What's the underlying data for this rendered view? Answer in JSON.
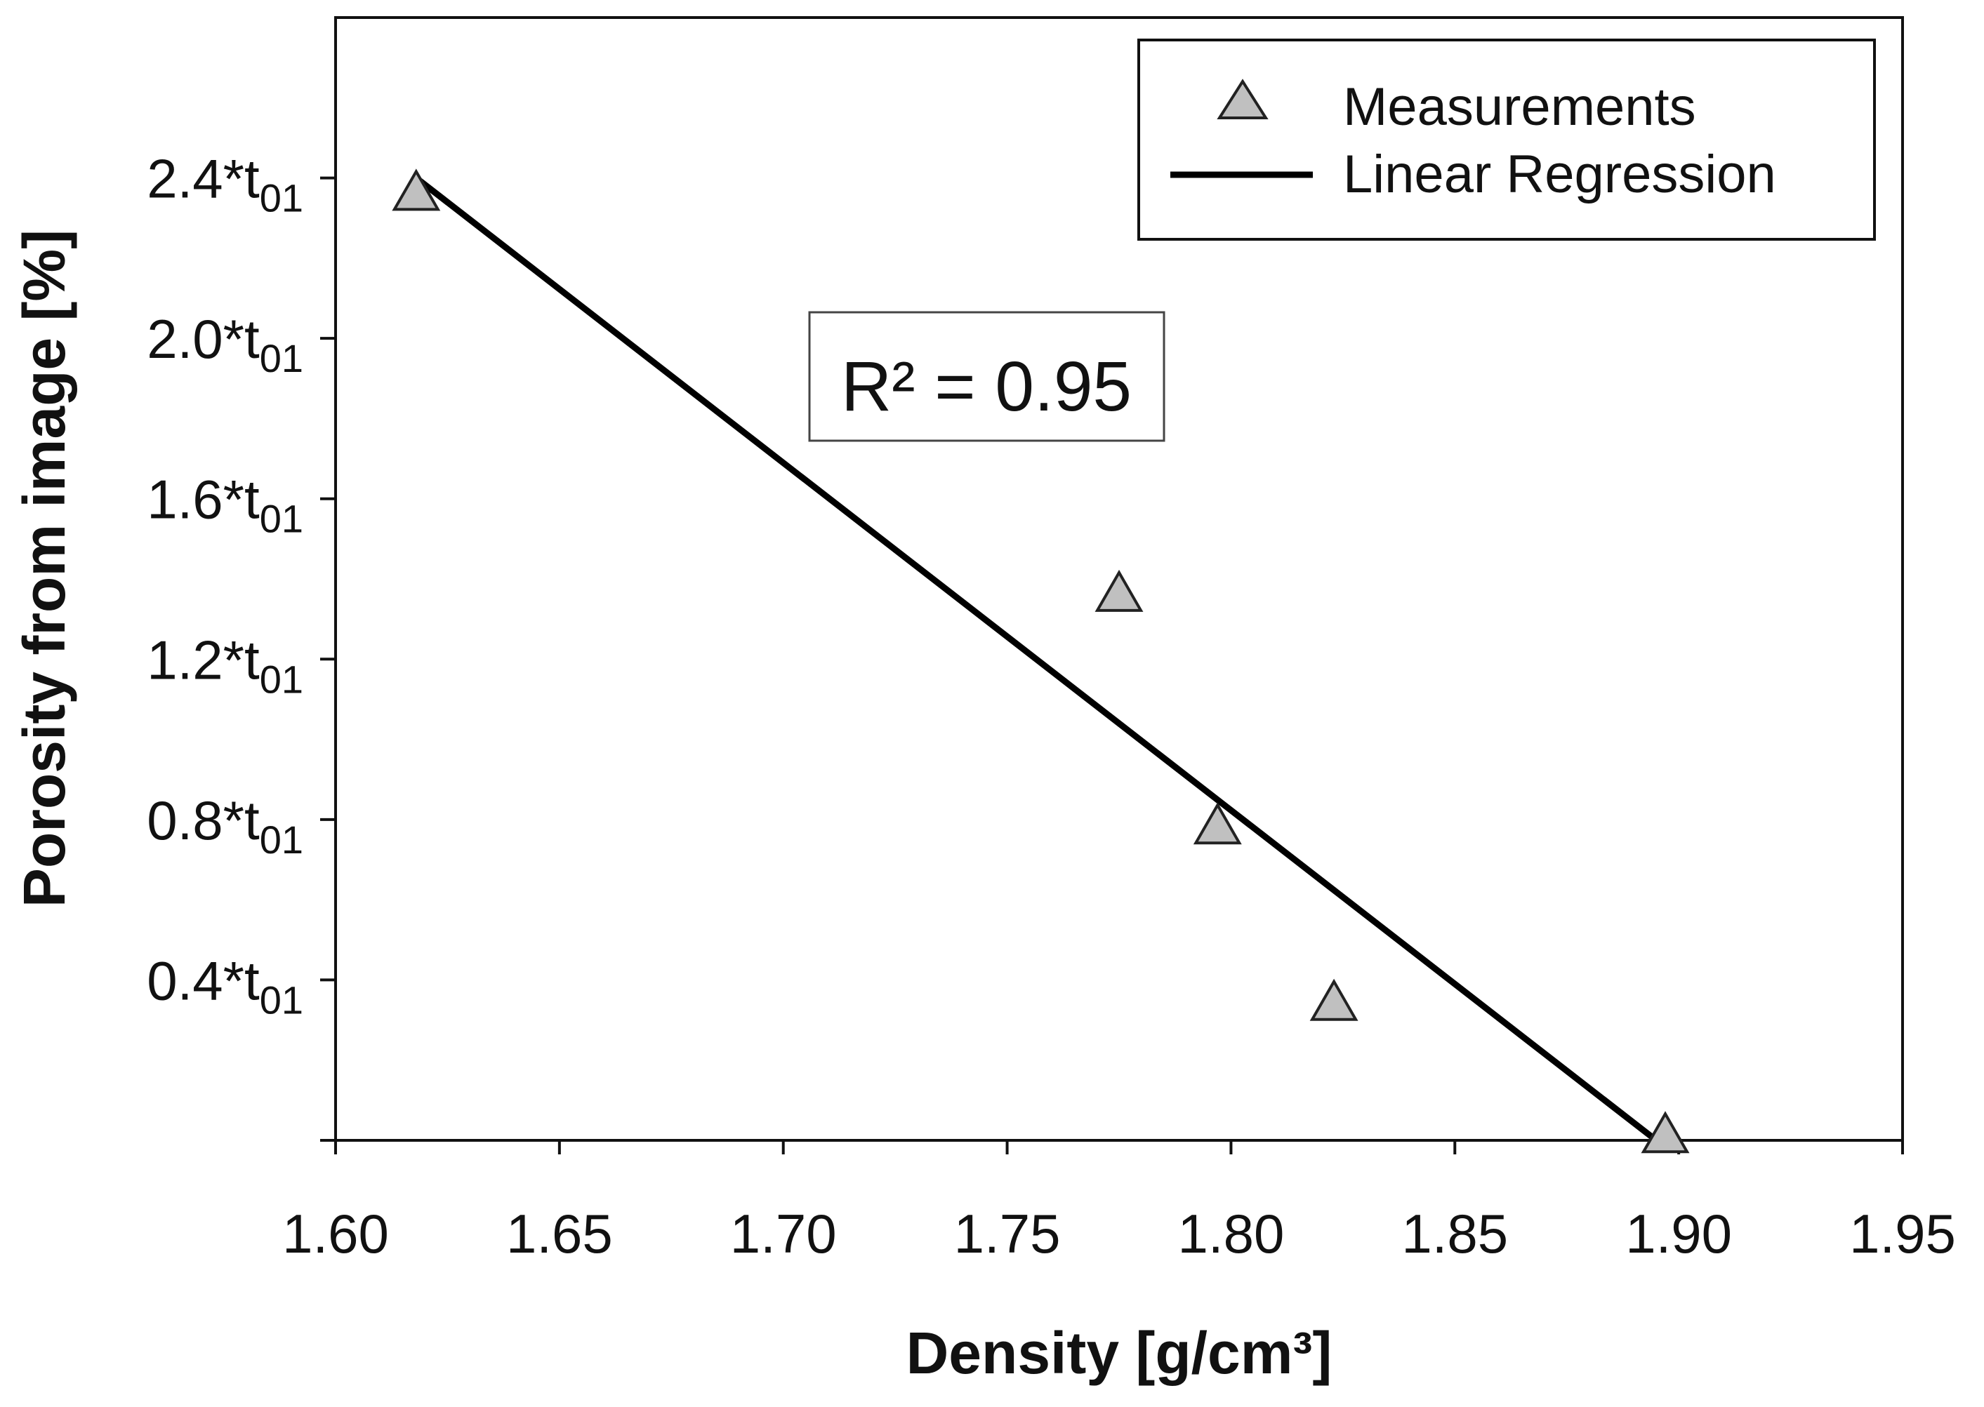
{
  "chart_data": {
    "type": "scatter",
    "title": "",
    "xlabel": "Density [g/cm³]",
    "ylabel": "Porosity from image [%]",
    "xlim": [
      1.6,
      1.95
    ],
    "ylim": [
      0.0,
      2.8
    ],
    "x_ticks": [
      {
        "value": 1.6,
        "label": "1.60"
      },
      {
        "value": 1.65,
        "label": "1.65"
      },
      {
        "value": 1.7,
        "label": "1.70"
      },
      {
        "value": 1.75,
        "label": "1.75"
      },
      {
        "value": 1.8,
        "label": "1.80"
      },
      {
        "value": 1.85,
        "label": "1.85"
      },
      {
        "value": 1.9,
        "label": "1.90"
      },
      {
        "value": 1.95,
        "label": "1.95"
      }
    ],
    "y_ticks": [
      {
        "value": 0.0,
        "main": "",
        "sub": ""
      },
      {
        "value": 0.4,
        "main": "0.4*t",
        "sub": "01"
      },
      {
        "value": 0.8,
        "main": "0.8*t",
        "sub": "01"
      },
      {
        "value": 1.2,
        "main": "1.2*t",
        "sub": "01"
      },
      {
        "value": 1.6,
        "main": "1.6*t",
        "sub": "01"
      },
      {
        "value": 2.0,
        "main": "2.0*t",
        "sub": "01"
      },
      {
        "value": 2.4,
        "main": "2.4*t",
        "sub": "01"
      }
    ],
    "series": [
      {
        "name": "Measurements",
        "kind": "scatter",
        "marker": "triangle",
        "color": "#c0c0c0",
        "points": [
          {
            "x": 1.618,
            "y": 2.36
          },
          {
            "x": 1.775,
            "y": 1.36
          },
          {
            "x": 1.797,
            "y": 0.78
          },
          {
            "x": 1.823,
            "y": 0.34
          },
          {
            "x": 1.897,
            "y": 0.01
          }
        ]
      },
      {
        "name": "Linear Regression",
        "kind": "line",
        "color": "#000000",
        "points": [
          {
            "x": 1.618,
            "y": 2.4
          },
          {
            "x": 1.895,
            "y": 0.0
          }
        ]
      }
    ],
    "legend": {
      "position": "top-right",
      "entries": [
        {
          "label": "Measurements",
          "symbol": "triangle"
        },
        {
          "label": "Linear Regression",
          "symbol": "line"
        }
      ]
    },
    "annotation": {
      "text": "R² = 0.95"
    }
  }
}
